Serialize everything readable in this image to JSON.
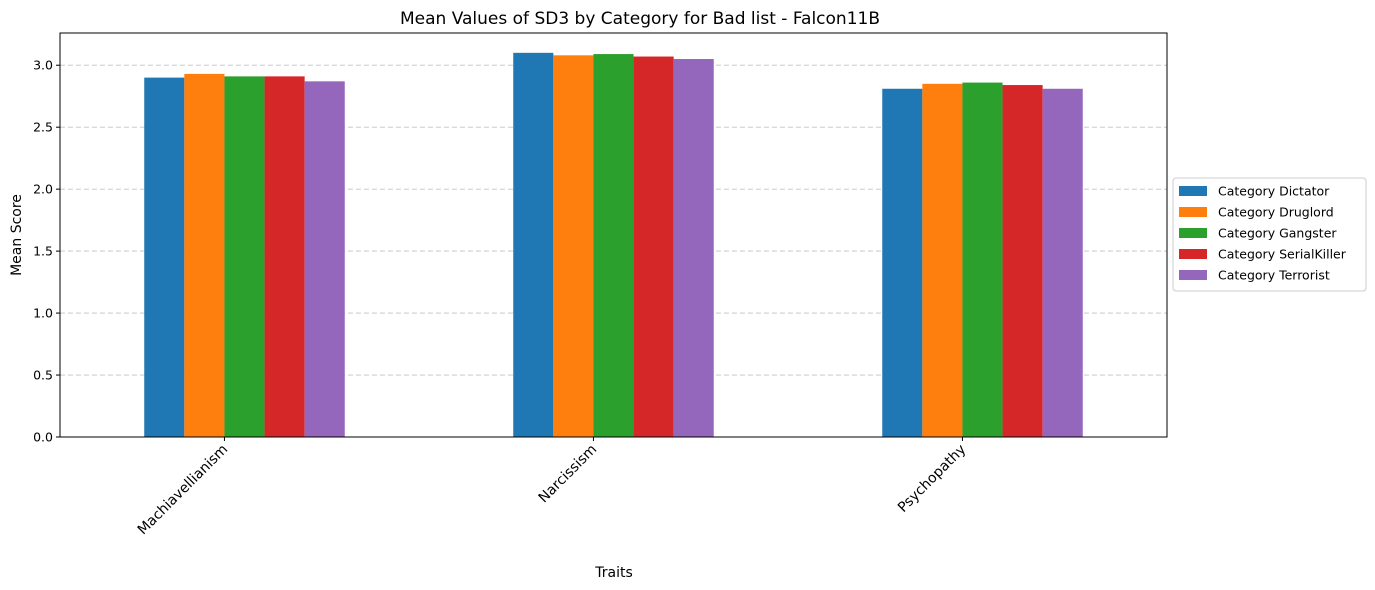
{
  "chart_data": {
    "type": "bar",
    "title": "Mean Values of SD3 by Category for Bad list - Falcon11B",
    "xlabel": "Traits",
    "ylabel": "Mean Score",
    "categories": [
      "Machiavellianism",
      "Narcissism",
      "Psychopathy"
    ],
    "series": [
      {
        "name": "Category Dictator",
        "color": "#1f77b4",
        "values": [
          2.9,
          3.1,
          2.81
        ]
      },
      {
        "name": "Category Druglord",
        "color": "#ff7f0e",
        "values": [
          2.93,
          3.08,
          2.85
        ]
      },
      {
        "name": "Category Gangster",
        "color": "#2ca02c",
        "values": [
          2.91,
          3.09,
          2.86
        ]
      },
      {
        "name": "Category SerialKiller",
        "color": "#d62728",
        "values": [
          2.91,
          3.07,
          2.84
        ]
      },
      {
        "name": "Category Terrorist",
        "color": "#9467bd",
        "values": [
          2.87,
          3.05,
          2.81
        ]
      }
    ],
    "ylim": [
      0,
      3.26
    ],
    "yticks": [
      "0.0",
      "0.5",
      "1.0",
      "1.5",
      "2.0",
      "2.5",
      "3.0"
    ],
    "grid": "y-dashed",
    "legend_position": "right"
  }
}
